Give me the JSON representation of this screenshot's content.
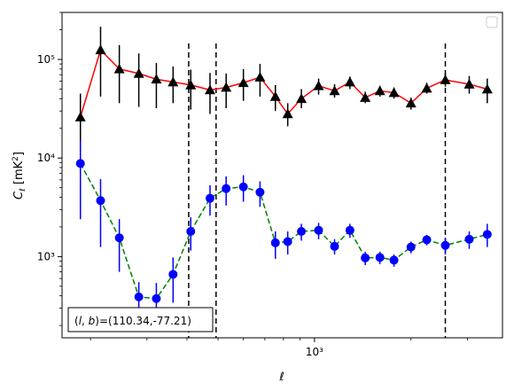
{
  "chart_data": {
    "type": "scatter",
    "title": "",
    "xlabel": "ℓ",
    "ylabel": "C_ℓ [mK²]",
    "xscale": "log",
    "yscale": "log",
    "xlim": [
      163,
      3860
    ],
    "ylim": [
      150,
      300000
    ],
    "x_ticks": [
      {
        "value": 1000,
        "label": "10^3"
      }
    ],
    "y_ticks": [
      {
        "value": 1000,
        "label": "10^3"
      },
      {
        "value": 10000,
        "label": "10^4"
      },
      {
        "value": 100000,
        "label": "10^5"
      }
    ],
    "legend": {
      "placement": "top-right",
      "entries": []
    },
    "vertical_lines": [
      {
        "x": 405,
        "style": "dashed",
        "color": "#000000"
      },
      {
        "x": 493,
        "style": "dashed",
        "color": "#000000"
      },
      {
        "x": 2560,
        "style": "dashed",
        "color": "#000000"
      }
    ],
    "annotation": {
      "text": "(l, b)=(110.34,-77.21)",
      "placement": "bottom-left"
    },
    "series": [
      {
        "marker": "triangle",
        "marker_color": "#000000",
        "line_color": "#ff0000",
        "line_style": "solid",
        "errorbar_color": "#000000",
        "points": [
          {
            "x": 186,
            "y": 26000,
            "lo": 12000,
            "hi": 45000
          },
          {
            "x": 215,
            "y": 125000,
            "lo": 42000,
            "hi": 215000
          },
          {
            "x": 246,
            "y": 80000,
            "lo": 36000,
            "hi": 140000
          },
          {
            "x": 283,
            "y": 72000,
            "lo": 33000,
            "hi": 115000
          },
          {
            "x": 321,
            "y": 63000,
            "lo": 32000,
            "hi": 92000
          },
          {
            "x": 362,
            "y": 59000,
            "lo": 36000,
            "hi": 85000
          },
          {
            "x": 411,
            "y": 55000,
            "lo": 31000,
            "hi": 79000
          },
          {
            "x": 472,
            "y": 49000,
            "lo": 28000,
            "hi": 73000
          },
          {
            "x": 530,
            "y": 52000,
            "lo": 32000,
            "hi": 72000
          },
          {
            "x": 600,
            "y": 58000,
            "lo": 38000,
            "hi": 80000
          },
          {
            "x": 676,
            "y": 66000,
            "lo": 42000,
            "hi": 90000
          },
          {
            "x": 755,
            "y": 42000,
            "lo": 30000,
            "hi": 55000
          },
          {
            "x": 825,
            "y": 28000,
            "lo": 21000,
            "hi": 36000
          },
          {
            "x": 910,
            "y": 40000,
            "lo": 32000,
            "hi": 50000
          },
          {
            "x": 1030,
            "y": 54000,
            "lo": 44000,
            "hi": 64000
          },
          {
            "x": 1155,
            "y": 48000,
            "lo": 41000,
            "hi": 56000
          },
          {
            "x": 1290,
            "y": 59000,
            "lo": 50000,
            "hi": 67000
          },
          {
            "x": 1440,
            "y": 41000,
            "lo": 36000,
            "hi": 47000
          },
          {
            "x": 1600,
            "y": 48000,
            "lo": 42000,
            "hi": 54000
          },
          {
            "x": 1770,
            "y": 46000,
            "lo": 40000,
            "hi": 52000
          },
          {
            "x": 2000,
            "y": 36000,
            "lo": 31000,
            "hi": 41000
          },
          {
            "x": 2240,
            "y": 51000,
            "lo": 45000,
            "hi": 58000
          },
          {
            "x": 2560,
            "y": 62000,
            "lo": 53000,
            "hi": 72000
          },
          {
            "x": 3040,
            "y": 56000,
            "lo": 45000,
            "hi": 68000
          },
          {
            "x": 3460,
            "y": 50000,
            "lo": 36000,
            "hi": 64000
          }
        ]
      },
      {
        "marker": "circle",
        "marker_color": "#0000ff",
        "line_color": "#008000",
        "line_style": "dashed",
        "errorbar_color": "#0000ff",
        "points": [
          {
            "x": 186,
            "y": 8800,
            "lo": 2400,
            "hi": 15000
          },
          {
            "x": 215,
            "y": 3700,
            "lo": 1250,
            "hi": 6100
          },
          {
            "x": 246,
            "y": 1550,
            "lo": 700,
            "hi": 2400
          },
          {
            "x": 283,
            "y": 390,
            "lo": 230,
            "hi": 550
          },
          {
            "x": 321,
            "y": 375,
            "lo": 220,
            "hi": 540
          },
          {
            "x": 362,
            "y": 660,
            "lo": 340,
            "hi": 980
          },
          {
            "x": 411,
            "y": 1800,
            "lo": 1150,
            "hi": 2500
          },
          {
            "x": 472,
            "y": 3900,
            "lo": 2600,
            "hi": 5300
          },
          {
            "x": 530,
            "y": 4900,
            "lo": 3300,
            "hi": 6500
          },
          {
            "x": 600,
            "y": 5100,
            "lo": 3600,
            "hi": 6700
          },
          {
            "x": 676,
            "y": 4500,
            "lo": 3200,
            "hi": 5800
          },
          {
            "x": 755,
            "y": 1380,
            "lo": 950,
            "hi": 1800
          },
          {
            "x": 825,
            "y": 1420,
            "lo": 1050,
            "hi": 1800
          },
          {
            "x": 910,
            "y": 1800,
            "lo": 1450,
            "hi": 2150
          },
          {
            "x": 1030,
            "y": 1850,
            "lo": 1500,
            "hi": 2200
          },
          {
            "x": 1155,
            "y": 1270,
            "lo": 1050,
            "hi": 1500
          },
          {
            "x": 1290,
            "y": 1850,
            "lo": 1550,
            "hi": 2150
          },
          {
            "x": 1440,
            "y": 970,
            "lo": 820,
            "hi": 1120
          },
          {
            "x": 1600,
            "y": 980,
            "lo": 840,
            "hi": 1120
          },
          {
            "x": 1770,
            "y": 920,
            "lo": 790,
            "hi": 1050
          },
          {
            "x": 2000,
            "y": 1250,
            "lo": 1080,
            "hi": 1420
          },
          {
            "x": 2240,
            "y": 1480,
            "lo": 1300,
            "hi": 1660
          },
          {
            "x": 2560,
            "y": 1300,
            "lo": 1050,
            "hi": 1560
          },
          {
            "x": 3040,
            "y": 1500,
            "lo": 1200,
            "hi": 1800
          },
          {
            "x": 3460,
            "y": 1680,
            "lo": 1250,
            "hi": 2150
          }
        ]
      }
    ]
  }
}
